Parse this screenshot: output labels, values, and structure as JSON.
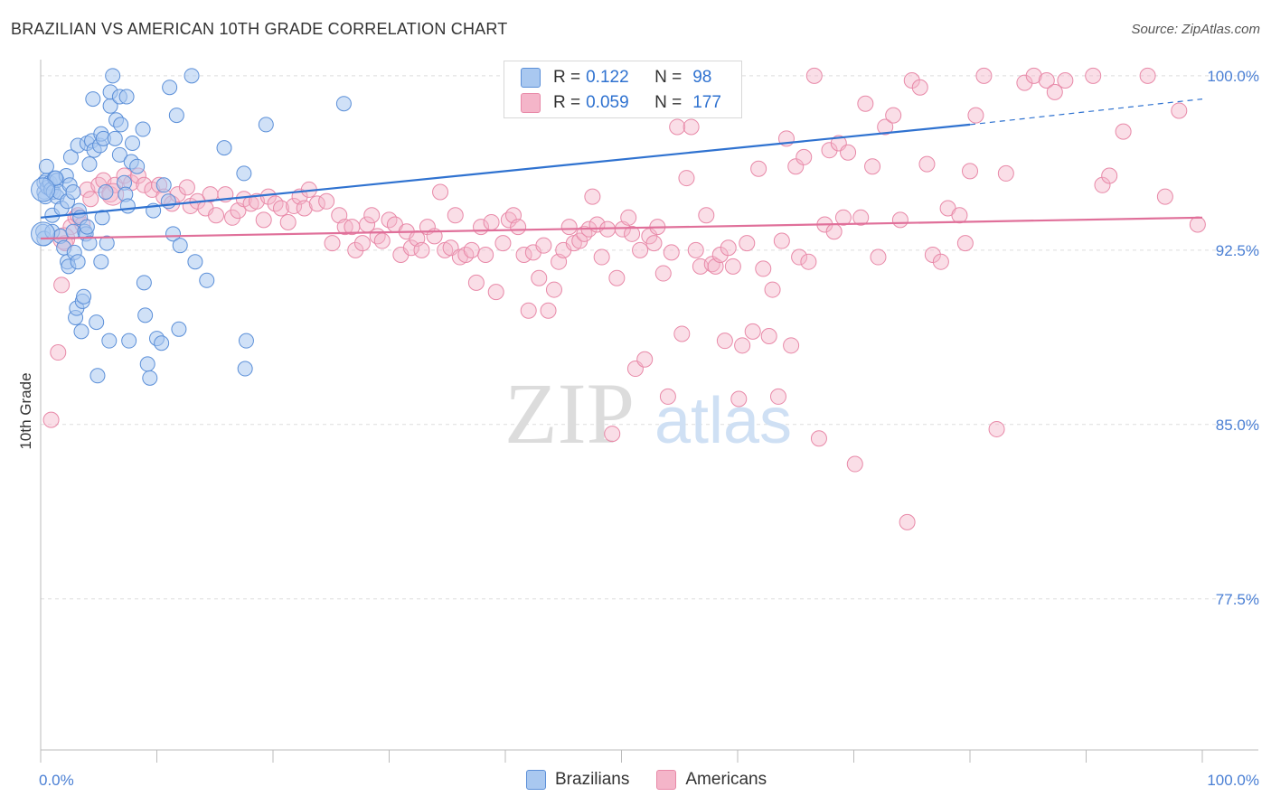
{
  "header": {
    "title": "BRAZILIAN VS AMERICAN 10TH GRADE CORRELATION CHART",
    "source": "Source: ZipAtlas.com"
  },
  "watermark": {
    "zip": "ZIP",
    "atlas": "atlas"
  },
  "colors": {
    "blue_fill": "#a9c8f0",
    "blue_stroke": "#5b8fd8",
    "blue_line": "#2f72d0",
    "pink_fill": "#f4b5c9",
    "pink_stroke": "#e889a8",
    "pink_line": "#e0709a",
    "axis_text": "#4a7fd4",
    "grid": "#dddddd"
  },
  "legend": {
    "series": [
      {
        "r_label": "R =",
        "r_value": "0.122",
        "n_label": "N =",
        "n_value": "98"
      },
      {
        "r_label": "R =",
        "r_value": "0.059",
        "n_label": "N =",
        "n_value": "177"
      }
    ]
  },
  "bottom_legend": [
    "Brazilians",
    "Americans"
  ],
  "chart_data": {
    "type": "scatter",
    "title": "BRAZILIAN VS AMERICAN 10TH GRADE CORRELATION CHART",
    "xlabel": "",
    "ylabel": "10th Grade",
    "xlim": [
      0,
      100
    ],
    "ylim": [
      71.0,
      100.5
    ],
    "x_tick_labels": [
      "0.0%",
      "100.0%"
    ],
    "y_ticks": [
      100.0,
      92.5,
      85.0,
      77.5
    ],
    "y_tick_labels": [
      "100.0%",
      "92.5%",
      "85.0%",
      "77.5%"
    ],
    "grid": true,
    "series": [
      {
        "name": "Brazilians",
        "r": 0.122,
        "n": 98,
        "trend": {
          "x0": 0,
          "y0": 93.9,
          "x1": 80,
          "y1": 97.9,
          "dashed_to_x": 100,
          "dashed_to_y": 99.0
        },
        "points": [
          [
            0.2,
            93.3
          ],
          [
            0.3,
            93.0
          ],
          [
            0.3,
            95.0
          ],
          [
            0.3,
            95.4
          ],
          [
            0.4,
            94.8
          ],
          [
            0.5,
            95.5
          ],
          [
            0.5,
            96.1
          ],
          [
            0.6,
            95.2
          ],
          [
            0.8,
            95.4
          ],
          [
            0.9,
            95.1
          ],
          [
            1.0,
            93.3
          ],
          [
            1.0,
            94.0
          ],
          [
            1.1,
            95.0
          ],
          [
            1.2,
            95.6
          ],
          [
            1.4,
            95.5
          ],
          [
            1.4,
            94.8
          ],
          [
            1.6,
            95.0
          ],
          [
            1.7,
            93.1
          ],
          [
            1.8,
            94.3
          ],
          [
            2.0,
            92.6
          ],
          [
            2.2,
            95.7
          ],
          [
            2.3,
            94.6
          ],
          [
            2.3,
            92.0
          ],
          [
            2.4,
            91.8
          ],
          [
            2.5,
            95.3
          ],
          [
            2.6,
            96.5
          ],
          [
            2.8,
            93.3
          ],
          [
            2.9,
            92.4
          ],
          [
            3.0,
            89.6
          ],
          [
            3.1,
            90.0
          ],
          [
            3.2,
            97.0
          ],
          [
            3.2,
            92.0
          ],
          [
            3.3,
            94.2
          ],
          [
            3.4,
            93.9
          ],
          [
            3.5,
            89.0
          ],
          [
            3.6,
            90.3
          ],
          [
            3.7,
            90.5
          ],
          [
            3.8,
            93.3
          ],
          [
            3.9,
            93.2
          ],
          [
            4.0,
            93.5
          ],
          [
            4.0,
            97.1
          ],
          [
            4.2,
            92.8
          ],
          [
            4.2,
            96.2
          ],
          [
            4.4,
            97.2
          ],
          [
            4.5,
            99.0
          ],
          [
            4.6,
            96.8
          ],
          [
            4.8,
            89.4
          ],
          [
            4.9,
            87.1
          ],
          [
            5.1,
            97.0
          ],
          [
            5.2,
            97.5
          ],
          [
            5.2,
            92.0
          ],
          [
            5.3,
            93.9
          ],
          [
            5.4,
            97.3
          ],
          [
            5.6,
            95.0
          ],
          [
            5.7,
            92.8
          ],
          [
            5.9,
            88.6
          ],
          [
            6.0,
            98.7
          ],
          [
            6.0,
            99.3
          ],
          [
            6.2,
            100.0
          ],
          [
            6.4,
            97.3
          ],
          [
            6.5,
            98.1
          ],
          [
            6.8,
            96.6
          ],
          [
            6.8,
            99.1
          ],
          [
            7.2,
            95.4
          ],
          [
            7.3,
            94.9
          ],
          [
            7.4,
            99.1
          ],
          [
            7.5,
            94.4
          ],
          [
            7.6,
            88.6
          ],
          [
            7.8,
            96.3
          ],
          [
            7.9,
            97.1
          ],
          [
            8.3,
            96.1
          ],
          [
            8.8,
            97.7
          ],
          [
            8.9,
            91.1
          ],
          [
            9.0,
            89.7
          ],
          [
            9.2,
            87.6
          ],
          [
            9.4,
            87.0
          ],
          [
            9.7,
            94.2
          ],
          [
            10.0,
            88.7
          ],
          [
            10.4,
            88.5
          ],
          [
            10.6,
            95.3
          ],
          [
            11.0,
            94.6
          ],
          [
            11.1,
            99.5
          ],
          [
            11.4,
            93.2
          ],
          [
            11.7,
            98.3
          ],
          [
            11.9,
            89.1
          ],
          [
            12.0,
            92.7
          ],
          [
            13.0,
            100.0
          ],
          [
            13.3,
            92.0
          ],
          [
            14.3,
            91.2
          ],
          [
            15.8,
            96.9
          ],
          [
            17.5,
            95.8
          ],
          [
            17.6,
            87.4
          ],
          [
            17.7,
            88.6
          ],
          [
            19.4,
            97.9
          ],
          [
            26.1,
            98.8
          ],
          [
            1.3,
            95.6
          ],
          [
            2.8,
            95.0
          ],
          [
            6.9,
            97.9
          ]
        ],
        "large_points": [
          [
            0.2,
            93.2
          ],
          [
            0.2,
            95.1
          ]
        ]
      },
      {
        "name": "Americans",
        "r": 0.059,
        "n": 177,
        "trend": {
          "x0": 0,
          "y0": 93.0,
          "x1": 100,
          "y1": 93.9
        },
        "points": [
          [
            0.9,
            85.2
          ],
          [
            1.5,
            88.1
          ],
          [
            1.8,
            91.0
          ],
          [
            2.1,
            92.8
          ],
          [
            2.6,
            93.5
          ],
          [
            3.0,
            93.9
          ],
          [
            3.2,
            94.0
          ],
          [
            3.6,
            93.6
          ],
          [
            4.0,
            95.1
          ],
          [
            4.3,
            94.7
          ],
          [
            5.0,
            95.3
          ],
          [
            5.4,
            95.5
          ],
          [
            6.0,
            94.9
          ],
          [
            6.4,
            95.3
          ],
          [
            7.2,
            95.7
          ],
          [
            7.8,
            95.4
          ],
          [
            8.4,
            95.7
          ],
          [
            8.9,
            95.3
          ],
          [
            9.6,
            95.1
          ],
          [
            10.2,
            95.3
          ],
          [
            10.6,
            94.8
          ],
          [
            11.3,
            94.5
          ],
          [
            11.8,
            94.9
          ],
          [
            12.6,
            95.2
          ],
          [
            12.9,
            94.4
          ],
          [
            13.5,
            94.6
          ],
          [
            14.2,
            94.3
          ],
          [
            14.6,
            94.9
          ],
          [
            15.1,
            94.0
          ],
          [
            15.9,
            94.9
          ],
          [
            16.5,
            93.9
          ],
          [
            17.0,
            94.2
          ],
          [
            17.5,
            94.7
          ],
          [
            18.1,
            94.5
          ],
          [
            18.6,
            94.6
          ],
          [
            19.2,
            93.8
          ],
          [
            19.6,
            94.8
          ],
          [
            20.2,
            94.5
          ],
          [
            20.7,
            94.3
          ],
          [
            21.3,
            93.7
          ],
          [
            21.8,
            94.4
          ],
          [
            22.3,
            94.8
          ],
          [
            22.7,
            94.3
          ],
          [
            23.1,
            95.1
          ],
          [
            23.8,
            94.5
          ],
          [
            24.6,
            94.6
          ],
          [
            25.1,
            92.8
          ],
          [
            25.7,
            94.0
          ],
          [
            26.2,
            93.5
          ],
          [
            26.8,
            93.5
          ],
          [
            27.1,
            92.5
          ],
          [
            27.7,
            92.8
          ],
          [
            28.1,
            93.6
          ],
          [
            28.5,
            94.0
          ],
          [
            29.0,
            93.1
          ],
          [
            29.4,
            92.9
          ],
          [
            30.0,
            93.8
          ],
          [
            30.5,
            93.6
          ],
          [
            31.0,
            92.3
          ],
          [
            31.5,
            93.3
          ],
          [
            31.9,
            92.6
          ],
          [
            32.4,
            93.0
          ],
          [
            32.8,
            92.5
          ],
          [
            33.3,
            93.5
          ],
          [
            33.9,
            93.1
          ],
          [
            34.4,
            95.0
          ],
          [
            34.8,
            92.5
          ],
          [
            35.3,
            92.6
          ],
          [
            35.7,
            94.0
          ],
          [
            36.1,
            92.2
          ],
          [
            36.6,
            92.3
          ],
          [
            37.1,
            92.5
          ],
          [
            37.5,
            91.1
          ],
          [
            37.9,
            93.5
          ],
          [
            38.3,
            92.3
          ],
          [
            38.8,
            93.7
          ],
          [
            39.2,
            90.7
          ],
          [
            39.8,
            92.8
          ],
          [
            40.3,
            93.8
          ],
          [
            40.7,
            94.0
          ],
          [
            41.1,
            93.5
          ],
          [
            41.6,
            92.3
          ],
          [
            42.0,
            89.9
          ],
          [
            42.4,
            92.4
          ],
          [
            42.9,
            91.3
          ],
          [
            43.3,
            92.7
          ],
          [
            43.7,
            89.9
          ],
          [
            44.2,
            90.8
          ],
          [
            44.6,
            92.0
          ],
          [
            45.0,
            92.5
          ],
          [
            45.5,
            93.5
          ],
          [
            45.9,
            92.8
          ],
          [
            46.4,
            92.9
          ],
          [
            46.8,
            93.2
          ],
          [
            47.2,
            93.4
          ],
          [
            47.5,
            94.8
          ],
          [
            47.9,
            93.6
          ],
          [
            48.3,
            92.2
          ],
          [
            48.8,
            93.4
          ],
          [
            49.2,
            84.6
          ],
          [
            49.6,
            91.3
          ],
          [
            50.1,
            93.4
          ],
          [
            50.6,
            93.9
          ],
          [
            50.9,
            93.2
          ],
          [
            51.2,
            87.4
          ],
          [
            51.6,
            92.5
          ],
          [
            52.0,
            87.8
          ],
          [
            52.4,
            93.1
          ],
          [
            52.8,
            92.8
          ],
          [
            53.1,
            93.5
          ],
          [
            53.6,
            91.5
          ],
          [
            54.0,
            86.2
          ],
          [
            54.3,
            92.4
          ],
          [
            54.8,
            97.8
          ],
          [
            55.2,
            88.9
          ],
          [
            55.6,
            95.6
          ],
          [
            56.0,
            97.8
          ],
          [
            56.4,
            92.5
          ],
          [
            56.8,
            91.8
          ],
          [
            57.3,
            94.0
          ],
          [
            57.8,
            91.9
          ],
          [
            58.1,
            91.8
          ],
          [
            58.5,
            92.3
          ],
          [
            58.9,
            88.6
          ],
          [
            59.2,
            92.6
          ],
          [
            59.6,
            91.8
          ],
          [
            60.1,
            86.1
          ],
          [
            60.4,
            88.4
          ],
          [
            60.8,
            92.8
          ],
          [
            61.3,
            89.0
          ],
          [
            61.8,
            96.0
          ],
          [
            62.2,
            91.7
          ],
          [
            62.7,
            88.8
          ],
          [
            63.0,
            90.8
          ],
          [
            63.5,
            86.2
          ],
          [
            63.8,
            92.9
          ],
          [
            64.2,
            97.3
          ],
          [
            64.6,
            88.4
          ],
          [
            65.0,
            96.1
          ],
          [
            65.3,
            92.2
          ],
          [
            65.7,
            96.5
          ],
          [
            66.1,
            92.0
          ],
          [
            66.6,
            100.0
          ],
          [
            67.0,
            84.4
          ],
          [
            67.5,
            93.6
          ],
          [
            67.9,
            96.8
          ],
          [
            68.3,
            93.3
          ],
          [
            68.7,
            97.1
          ],
          [
            69.1,
            93.9
          ],
          [
            69.5,
            96.7
          ],
          [
            70.1,
            83.3
          ],
          [
            70.6,
            93.9
          ],
          [
            71.0,
            98.8
          ],
          [
            71.6,
            96.1
          ],
          [
            72.1,
            92.2
          ],
          [
            72.7,
            97.8
          ],
          [
            73.4,
            98.3
          ],
          [
            74.0,
            93.8
          ],
          [
            74.6,
            80.8
          ],
          [
            75.0,
            99.8
          ],
          [
            75.7,
            99.5
          ],
          [
            76.3,
            96.2
          ],
          [
            76.8,
            92.3
          ],
          [
            77.5,
            92.0
          ],
          [
            78.1,
            94.3
          ],
          [
            79.1,
            94.0
          ],
          [
            79.6,
            92.8
          ],
          [
            80.0,
            95.9
          ],
          [
            80.5,
            98.3
          ],
          [
            81.2,
            100.0
          ],
          [
            82.3,
            84.8
          ],
          [
            83.1,
            95.8
          ],
          [
            84.7,
            99.7
          ],
          [
            85.5,
            100.0
          ],
          [
            86.6,
            99.8
          ],
          [
            87.3,
            99.3
          ],
          [
            88.2,
            99.8
          ],
          [
            90.6,
            100.0
          ],
          [
            91.4,
            95.3
          ],
          [
            92.0,
            95.7
          ],
          [
            93.2,
            97.6
          ],
          [
            95.3,
            100.0
          ],
          [
            96.8,
            94.8
          ],
          [
            98.0,
            98.5
          ],
          [
            99.6,
            93.6
          ]
        ],
        "large_points": [
          [
            2.0,
            93.0
          ],
          [
            6.2,
            94.9
          ]
        ]
      }
    ]
  }
}
